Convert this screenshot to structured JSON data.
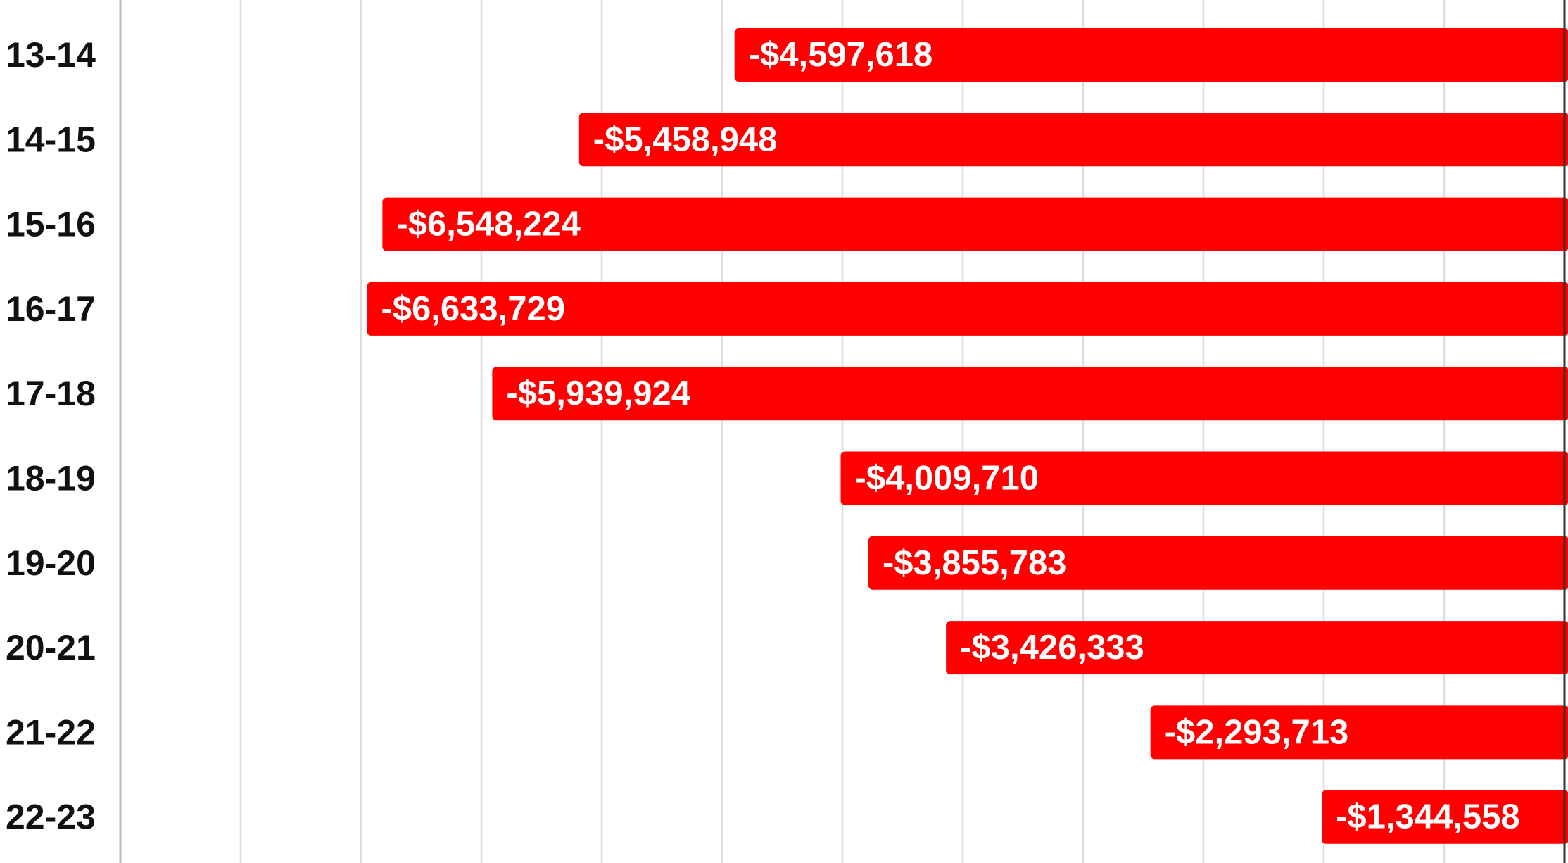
{
  "chart_data": {
    "type": "bar",
    "orientation": "horizontal",
    "categories": [
      "13-14",
      "14-15",
      "15-16",
      "16-17",
      "17-18",
      "18-19",
      "19-20",
      "20-21",
      "21-22",
      "22-23"
    ],
    "values": [
      -4597618,
      -5458948,
      -6548224,
      -6633729,
      -5939924,
      -4009710,
      -3855783,
      -3426333,
      -2293713,
      -1344558
    ],
    "data_labels": [
      "-$4,597,618",
      "-$5,458,948",
      "-$6,548,224",
      "-$6,633,729",
      "-$5,939,924",
      "-$4,009,710",
      "-$3,855,783",
      "-$3,426,333",
      "-$2,293,713",
      "-$1,344,558"
    ],
    "title": "",
    "xlabel": "",
    "ylabel": "",
    "xlim": [
      -8000000,
      0
    ],
    "grid": true,
    "legend": "none",
    "colors": {
      "bar": "#ff0000",
      "grid": "#dddddd",
      "axis": "#333333",
      "category_text": "#111111",
      "data_label_text": "#ffffff"
    }
  }
}
